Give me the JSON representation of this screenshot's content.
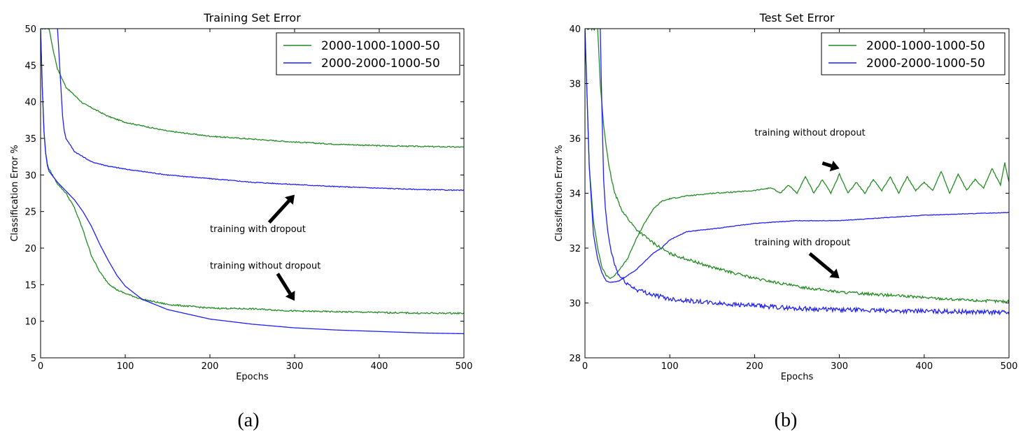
{
  "chart_data": [
    {
      "type": "line",
      "title": "Training Set Error",
      "xlabel": "Epochs",
      "ylabel": "Classification Error %",
      "xlim": [
        0,
        500
      ],
      "ylim": [
        5,
        50
      ],
      "xticks": [
        0,
        100,
        200,
        300,
        400,
        500
      ],
      "yticks": [
        5,
        10,
        15,
        20,
        25,
        30,
        35,
        40,
        45,
        50
      ],
      "legend_position": "top-right",
      "grid": false,
      "caption": "(a)",
      "legend": [
        {
          "name": "2000-1000-1000-50",
          "color": "#228b22"
        },
        {
          "name": "2000-2000-1000-50",
          "color": "#1f1fff"
        }
      ],
      "series": [
        {
          "name": "2000-1000-1000-50",
          "variant": "with dropout",
          "color": "#228b22",
          "noise": 0.08,
          "points": [
            [
              0,
              50
            ],
            [
              10,
              50
            ],
            [
              15,
              47
            ],
            [
              20,
              44.5
            ],
            [
              30,
              42
            ],
            [
              50,
              39.8
            ],
            [
              80,
              38
            ],
            [
              100,
              37.2
            ],
            [
              150,
              36
            ],
            [
              200,
              35.3
            ],
            [
              250,
              34.9
            ],
            [
              300,
              34.5
            ],
            [
              350,
              34.2
            ],
            [
              400,
              34
            ],
            [
              450,
              33.9
            ],
            [
              500,
              33.8
            ]
          ]
        },
        {
          "name": "2000-2000-1000-50",
          "variant": "with dropout",
          "color": "#1f1fff",
          "noise": 0.06,
          "points": [
            [
              20,
              50
            ],
            [
              22,
              46
            ],
            [
              24,
              42
            ],
            [
              26,
              38
            ],
            [
              28,
              36
            ],
            [
              30,
              35
            ],
            [
              40,
              33.2
            ],
            [
              60,
              31.8
            ],
            [
              80,
              31.2
            ],
            [
              100,
              30.8
            ],
            [
              150,
              30
            ],
            [
              200,
              29.5
            ],
            [
              250,
              29
            ],
            [
              300,
              28.7
            ],
            [
              350,
              28.4
            ],
            [
              400,
              28.2
            ],
            [
              450,
              28
            ],
            [
              500,
              27.9
            ]
          ]
        },
        {
          "name": "2000-1000-1000-50",
          "variant": "without dropout",
          "color": "#228b22",
          "noise": 0.1,
          "points": [
            [
              0,
              50
            ],
            [
              2,
              42
            ],
            [
              4,
              36
            ],
            [
              6,
              33
            ],
            [
              8,
              31.5
            ],
            [
              10,
              30.8
            ],
            [
              20,
              28.8
            ],
            [
              30,
              27.5
            ],
            [
              40,
              25.5
            ],
            [
              50,
              22.5
            ],
            [
              60,
              19
            ],
            [
              70,
              16.7
            ],
            [
              80,
              15.2
            ],
            [
              90,
              14.3
            ],
            [
              100,
              13.8
            ],
            [
              120,
              13
            ],
            [
              150,
              12.3
            ],
            [
              200,
              11.8
            ],
            [
              250,
              11.7
            ],
            [
              300,
              11.4
            ],
            [
              350,
              11.3
            ],
            [
              400,
              11.2
            ],
            [
              450,
              11.1
            ],
            [
              500,
              11.1
            ]
          ]
        },
        {
          "name": "2000-2000-1000-50",
          "variant": "without dropout",
          "color": "#1f1fff",
          "noise": 0,
          "points": [
            [
              0,
              50
            ],
            [
              2,
              42
            ],
            [
              4,
              36
            ],
            [
              6,
              33
            ],
            [
              8,
              31.3
            ],
            [
              10,
              30.5
            ],
            [
              20,
              29
            ],
            [
              30,
              27.8
            ],
            [
              40,
              26.6
            ],
            [
              50,
              25
            ],
            [
              60,
              23
            ],
            [
              70,
              20.5
            ],
            [
              80,
              18.3
            ],
            [
              90,
              16.3
            ],
            [
              100,
              14.8
            ],
            [
              120,
              13
            ],
            [
              150,
              11.6
            ],
            [
              200,
              10.3
            ],
            [
              250,
              9.6
            ],
            [
              300,
              9.1
            ],
            [
              350,
              8.8
            ],
            [
              400,
              8.6
            ],
            [
              450,
              8.4
            ],
            [
              500,
              8.3
            ]
          ]
        }
      ],
      "annotations": [
        {
          "text": "training with dropout",
          "x": 200,
          "y": 22.2,
          "arrow_from": [
            270,
            23.5
          ],
          "arrow_to": [
            300,
            27.3
          ]
        },
        {
          "text": "training without dropout",
          "x": 200,
          "y": 17.2,
          "arrow_from": [
            280,
            16.5
          ],
          "arrow_to": [
            300,
            12.8
          ]
        }
      ]
    },
    {
      "type": "line",
      "title": "Test Set Error",
      "xlabel": "Epochs",
      "ylabel": "Classification Error %",
      "xlim": [
        0,
        500
      ],
      "ylim": [
        28,
        40
      ],
      "xticks": [
        0,
        100,
        200,
        300,
        400,
        500
      ],
      "yticks": [
        28,
        30,
        32,
        34,
        36,
        38,
        40
      ],
      "legend_position": "top-right",
      "grid": false,
      "caption": "(b)",
      "legend": [
        {
          "name": "2000-1000-1000-50",
          "color": "#228b22"
        },
        {
          "name": "2000-2000-1000-50",
          "color": "#1f1fff"
        }
      ],
      "series": [
        {
          "name": "2000-1000-1000-50",
          "variant": "without dropout",
          "color": "#228b22",
          "noise": 0.02,
          "points": [
            [
              0,
              40
            ],
            [
              5,
              35
            ],
            [
              10,
              33
            ],
            [
              15,
              32
            ],
            [
              20,
              31.3
            ],
            [
              25,
              31
            ],
            [
              30,
              30.9
            ],
            [
              35,
              31
            ],
            [
              40,
              31.2
            ],
            [
              50,
              31.6
            ],
            [
              60,
              32.3
            ],
            [
              70,
              32.9
            ],
            [
              80,
              33.4
            ],
            [
              90,
              33.7
            ],
            [
              100,
              33.8
            ],
            [
              120,
              33.9
            ],
            [
              150,
              34
            ],
            [
              180,
              34.05
            ],
            [
              200,
              34.1
            ],
            [
              220,
              34.2
            ],
            [
              230,
              34.0
            ],
            [
              240,
              34.3
            ],
            [
              250,
              34.0
            ],
            [
              260,
              34.6
            ],
            [
              270,
              34.0
            ],
            [
              280,
              34.5
            ],
            [
              290,
              34.0
            ],
            [
              300,
              34.7
            ],
            [
              310,
              34.0
            ],
            [
              320,
              34.4
            ],
            [
              330,
              34.0
            ],
            [
              340,
              34.5
            ],
            [
              350,
              34.1
            ],
            [
              360,
              34.6
            ],
            [
              370,
              34.0
            ],
            [
              380,
              34.6
            ],
            [
              390,
              34.1
            ],
            [
              400,
              34.4
            ],
            [
              410,
              34.1
            ],
            [
              420,
              34.8
            ],
            [
              430,
              34.0
            ],
            [
              440,
              34.7
            ],
            [
              450,
              34.1
            ],
            [
              460,
              34.5
            ],
            [
              470,
              34.2
            ],
            [
              480,
              34.9
            ],
            [
              490,
              34.3
            ],
            [
              495,
              35.1
            ],
            [
              500,
              34.4
            ]
          ]
        },
        {
          "name": "2000-2000-1000-50",
          "variant": "without dropout",
          "color": "#1f1fff",
          "noise": 0.01,
          "points": [
            [
              0,
              40
            ],
            [
              5,
              35
            ],
            [
              10,
              32.5
            ],
            [
              15,
              31.6
            ],
            [
              20,
              31.1
            ],
            [
              25,
              30.8
            ],
            [
              30,
              30.75
            ],
            [
              40,
              30.8
            ],
            [
              50,
              31
            ],
            [
              60,
              31.2
            ],
            [
              70,
              31.5
            ],
            [
              80,
              31.8
            ],
            [
              90,
              32
            ],
            [
              100,
              32.3
            ],
            [
              120,
              32.6
            ],
            [
              150,
              32.7
            ],
            [
              200,
              32.9
            ],
            [
              250,
              33
            ],
            [
              300,
              33
            ],
            [
              350,
              33.1
            ],
            [
              400,
              33.2
            ],
            [
              450,
              33.25
            ],
            [
              500,
              33.3
            ]
          ]
        },
        {
          "name": "2000-1000-1000-50",
          "variant": "with dropout",
          "color": "#228b22",
          "noise": 0.05,
          "points": [
            [
              0,
              40
            ],
            [
              15,
              40
            ],
            [
              18,
              38
            ],
            [
              22,
              36.5
            ],
            [
              28,
              35
            ],
            [
              35,
              34
            ],
            [
              45,
              33.3
            ],
            [
              60,
              32.7
            ],
            [
              80,
              32.2
            ],
            [
              100,
              31.8
            ],
            [
              150,
              31.3
            ],
            [
              200,
              30.9
            ],
            [
              250,
              30.6
            ],
            [
              300,
              30.4
            ],
            [
              350,
              30.3
            ],
            [
              400,
              30.2
            ],
            [
              450,
              30.1
            ],
            [
              500,
              30.05
            ]
          ]
        },
        {
          "name": "2000-2000-1000-50",
          "variant": "with dropout",
          "color": "#1f1fff",
          "noise": 0.08,
          "points": [
            [
              18,
              40
            ],
            [
              20,
              37
            ],
            [
              22,
              34.5
            ],
            [
              24,
              33.5
            ],
            [
              26,
              32.8
            ],
            [
              30,
              32
            ],
            [
              35,
              31.4
            ],
            [
              40,
              31
            ],
            [
              50,
              30.7
            ],
            [
              60,
              30.5
            ],
            [
              80,
              30.3
            ],
            [
              100,
              30.15
            ],
            [
              150,
              30
            ],
            [
              200,
              29.9
            ],
            [
              250,
              29.8
            ],
            [
              300,
              29.75
            ],
            [
              350,
              29.72
            ],
            [
              400,
              29.7
            ],
            [
              450,
              29.68
            ],
            [
              500,
              29.65
            ]
          ]
        }
      ],
      "annotations": [
        {
          "text": "training without dropout",
          "x": 200,
          "y": 36.1,
          "arrow_from": [
            280,
            35.1
          ],
          "arrow_to": [
            300,
            34.9
          ]
        },
        {
          "text": "training with dropout",
          "x": 200,
          "y": 32.1,
          "arrow_from": [
            265,
            31.8
          ],
          "arrow_to": [
            300,
            30.9
          ]
        }
      ]
    }
  ]
}
